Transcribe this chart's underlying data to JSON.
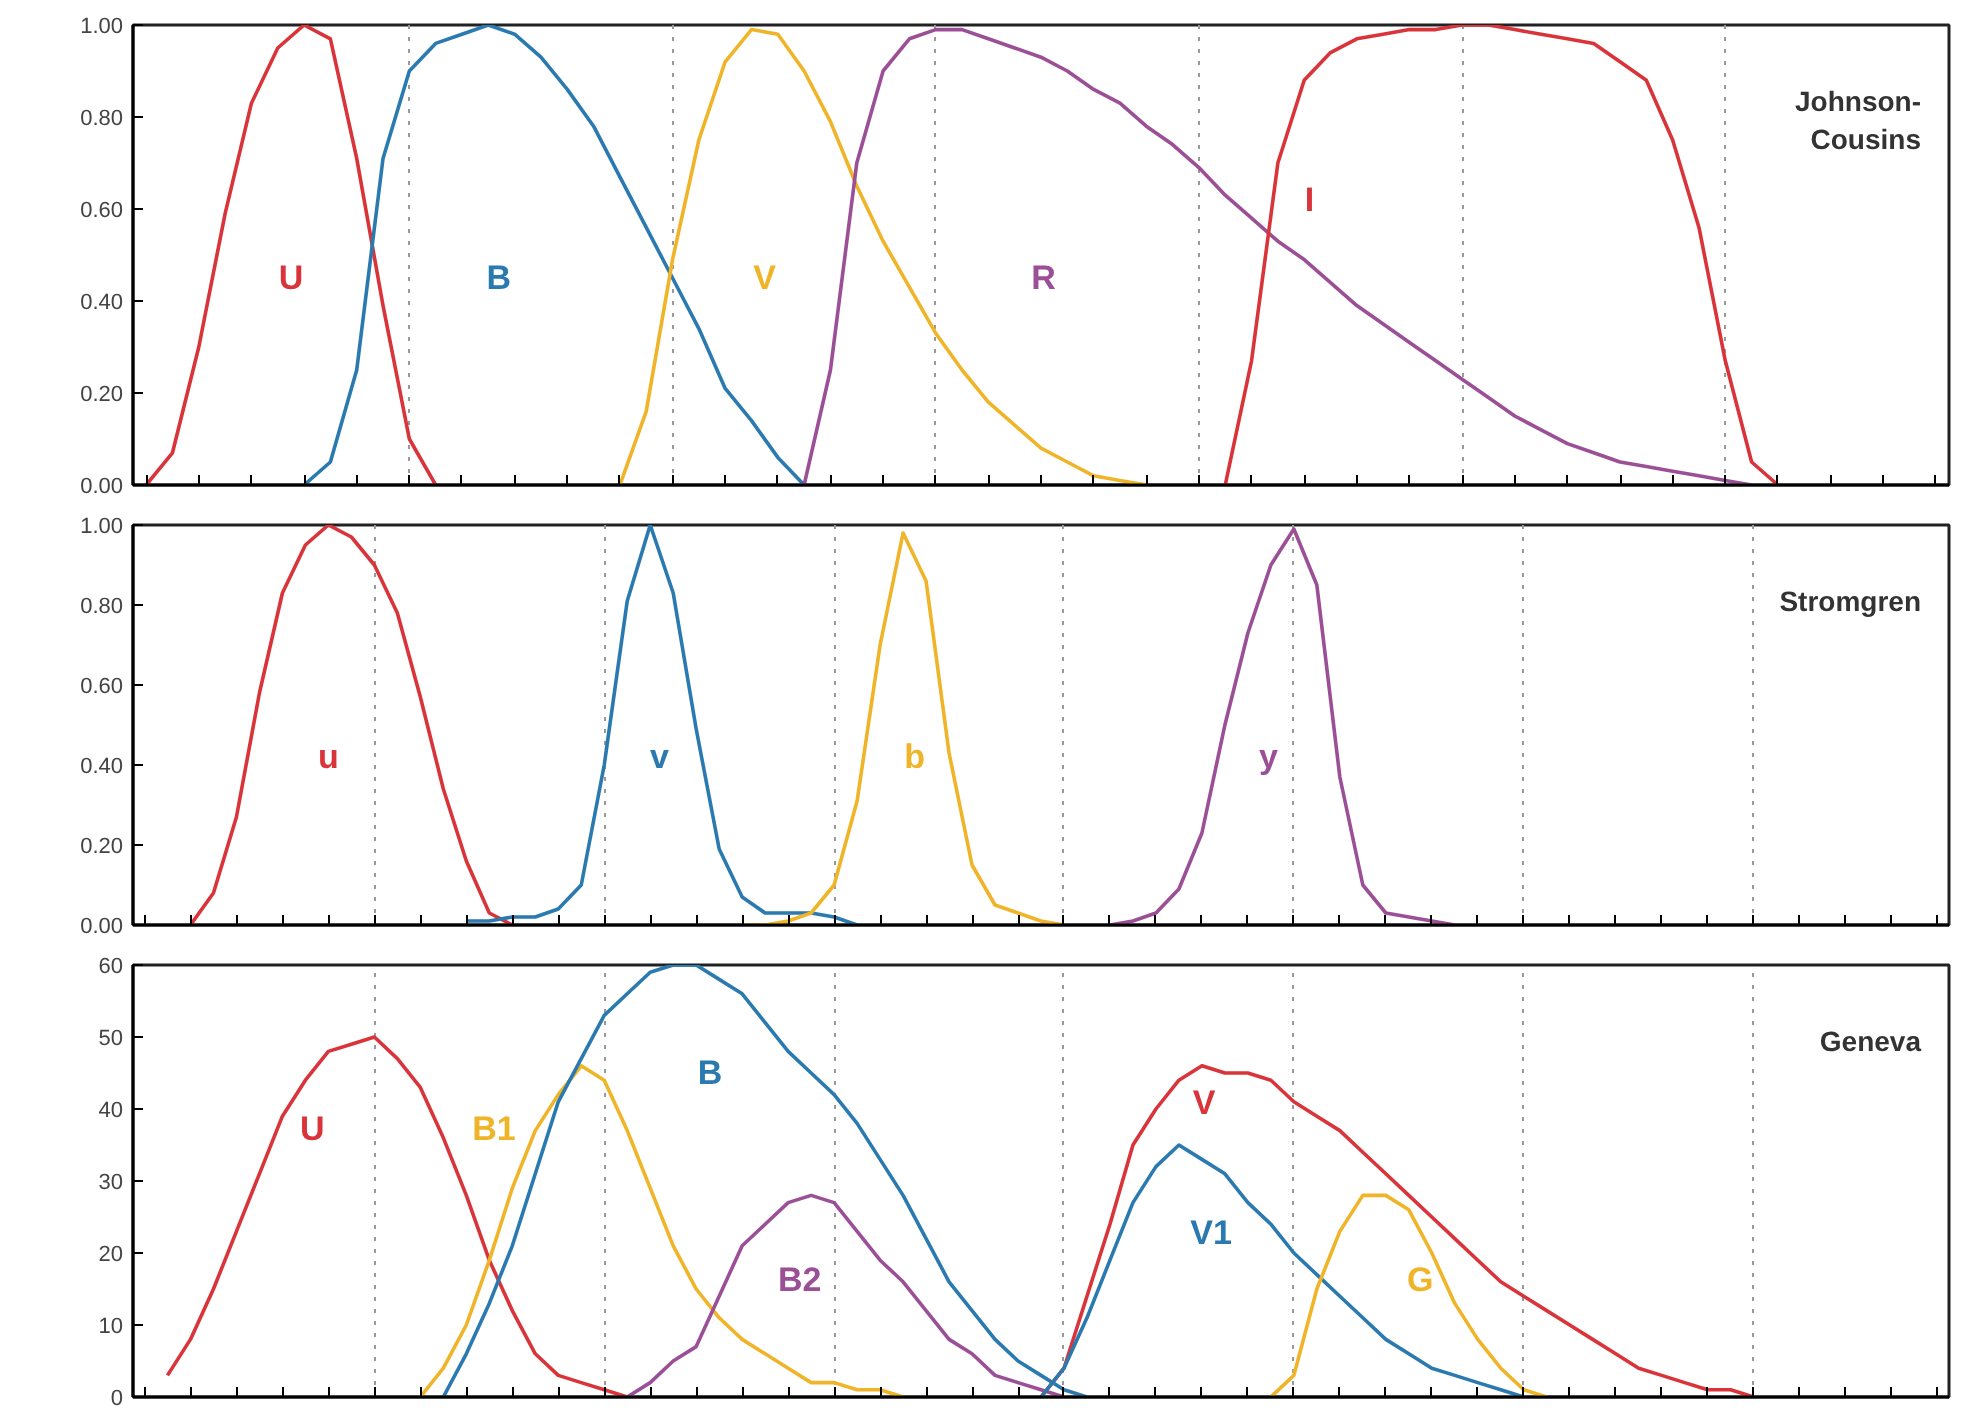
{
  "chart_data": [
    {
      "type": "line",
      "title": "Johnson-\nCousins",
      "categories": [
        null,
        null,
        null,
        null,
        null,
        null,
        null,
        null,
        null,
        null,
        null,
        null,
        null,
        null,
        null,
        null,
        null,
        null,
        null,
        null,
        null,
        null,
        null,
        null,
        null,
        null,
        null,
        null,
        null,
        null,
        null,
        null,
        null,
        null,
        null,
        null,
        null,
        null,
        null,
        null,
        null,
        null,
        null,
        null,
        null,
        null,
        null,
        null,
        null,
        null,
        null,
        null,
        null,
        null,
        null,
        null,
        null,
        null,
        null,
        null,
        null,
        null,
        null,
        null,
        null,
        null,
        null,
        null,
        null
      ],
      "ylim": [
        0,
        1
      ],
      "yticks": [
        {
          "value": 0,
          "label": "0.00"
        },
        {
          "value": 0.2,
          "label": "0.20"
        },
        {
          "value": 0.4,
          "label": "0.40"
        },
        {
          "value": 0.6,
          "label": "0.60"
        },
        {
          "value": 0.8,
          "label": "0.80"
        },
        {
          "value": 1,
          "label": "1.00"
        }
      ],
      "grid": "x",
      "line_style": "solid",
      "series": [
        {
          "name": "U",
          "color": "#d9343a",
          "values": [
            0,
            0.07,
            0.3,
            0.59,
            0.83,
            0.95,
            1.0,
            0.97,
            0.71,
            0.39,
            0.1,
            0,
            null,
            null,
            null,
            null,
            null,
            null,
            null,
            null,
            null,
            null,
            null,
            null,
            null,
            null,
            null,
            null,
            null,
            null,
            null,
            null,
            null,
            null,
            null,
            null,
            null,
            null,
            null,
            null,
            null,
            null,
            null,
            null,
            null,
            null,
            null,
            null,
            null,
            null,
            null,
            null,
            null,
            null,
            null,
            null,
            null,
            null,
            null,
            null,
            null,
            null,
            null,
            null,
            null,
            null,
            null,
            null,
            null
          ]
        },
        {
          "name": "B",
          "color": "#2a7ab0",
          "values": [
            null,
            null,
            null,
            null,
            null,
            null,
            0,
            0.05,
            0.25,
            0.71,
            0.9,
            0.96,
            0.98,
            1.0,
            0.98,
            0.93,
            0.86,
            0.78,
            0.67,
            0.56,
            0.45,
            0.34,
            0.21,
            0.14,
            0.06,
            0,
            null,
            null,
            null,
            null,
            null,
            null,
            null,
            null,
            null,
            null,
            null,
            null,
            null,
            null,
            null,
            null,
            null,
            null,
            null,
            null,
            null,
            null,
            null,
            null,
            null,
            null,
            null,
            null,
            null,
            null,
            null,
            null,
            null,
            null,
            null,
            null,
            null,
            null,
            null,
            null,
            null,
            null,
            null
          ]
        },
        {
          "name": "V",
          "color": "#f0b429",
          "values": [
            null,
            null,
            null,
            null,
            null,
            null,
            null,
            null,
            null,
            null,
            null,
            null,
            null,
            null,
            null,
            null,
            null,
            null,
            0,
            0.16,
            0.49,
            0.75,
            0.92,
            0.99,
            0.98,
            0.9,
            0.79,
            0.65,
            0.53,
            0.43,
            0.33,
            0.25,
            0.18,
            0.13,
            0.08,
            0.05,
            0.02,
            0.01,
            0,
            null,
            null,
            null,
            null,
            null,
            null,
            null,
            null,
            null,
            null,
            null,
            null,
            null,
            null,
            null,
            null,
            null,
            null,
            null,
            null,
            null,
            null,
            null,
            null,
            null,
            null,
            null,
            null,
            null,
            null
          ]
        },
        {
          "name": "R",
          "color": "#9b4f96",
          "values": [
            null,
            null,
            null,
            null,
            null,
            null,
            null,
            null,
            null,
            null,
            null,
            null,
            null,
            null,
            null,
            null,
            null,
            null,
            null,
            null,
            null,
            null,
            null,
            null,
            null,
            0,
            0.25,
            0.7,
            0.9,
            0.97,
            0.99,
            0.99,
            0.97,
            0.95,
            0.93,
            0.9,
            0.86,
            0.83,
            0.78,
            0.74,
            0.69,
            0.63,
            0.58,
            0.53,
            0.49,
            0.44,
            0.39,
            0.35,
            0.31,
            0.27,
            0.23,
            0.19,
            0.15,
            0.12,
            0.09,
            0.07,
            0.05,
            0.04,
            0.03,
            0.02,
            0.01,
            0,
            null,
            null,
            null,
            null,
            null,
            null,
            null
          ]
        },
        {
          "name": "I",
          "color": "#d9343a",
          "values": [
            null,
            null,
            null,
            null,
            null,
            null,
            null,
            null,
            null,
            null,
            null,
            null,
            null,
            null,
            null,
            null,
            null,
            null,
            null,
            null,
            null,
            null,
            null,
            null,
            null,
            null,
            null,
            null,
            null,
            null,
            null,
            null,
            null,
            null,
            null,
            null,
            null,
            null,
            null,
            null,
            null,
            0,
            0.27,
            0.7,
            0.88,
            0.94,
            0.97,
            0.98,
            0.99,
            0.99,
            1.0,
            1.0,
            0.99,
            0.98,
            0.97,
            0.96,
            0.92,
            0.88,
            0.75,
            0.56,
            0.27,
            0.05,
            0,
            null,
            null,
            null,
            null,
            null,
            null
          ]
        }
      ]
    },
    {
      "type": "line",
      "title": "Stromgren",
      "categories": [
        null,
        null,
        null,
        null,
        null,
        null,
        null,
        null,
        null,
        null,
        null,
        null,
        null,
        null,
        null,
        null,
        null,
        null,
        null,
        null,
        null,
        null,
        null,
        null,
        null,
        null,
        null,
        null,
        null,
        null,
        null,
        null,
        null,
        null,
        null,
        null,
        null,
        null,
        null,
        null,
        null,
        null,
        null,
        null,
        null,
        null,
        null,
        null,
        null,
        null,
        null,
        null,
        null,
        null,
        null,
        null,
        null,
        null,
        null,
        null,
        null,
        null,
        null,
        null,
        null,
        null,
        null,
        null,
        null,
        null,
        null,
        null,
        null,
        null,
        null,
        null,
        null,
        null,
        null
      ],
      "ylim": [
        0,
        1
      ],
      "yticks": [
        {
          "value": 0,
          "label": "0.00"
        },
        {
          "value": 0.2,
          "label": "0.20"
        },
        {
          "value": 0.4,
          "label": "0.40"
        },
        {
          "value": 0.6,
          "label": "0.60"
        },
        {
          "value": 0.8,
          "label": "0.80"
        },
        {
          "value": 1,
          "label": "1.00"
        }
      ],
      "grid": "x",
      "line_style": "solid",
      "series": [
        {
          "name": "u",
          "color": "#d9343a",
          "values": [
            null,
            null,
            0,
            0.08,
            0.27,
            0.58,
            0.83,
            0.95,
            1.0,
            0.97,
            0.9,
            0.78,
            0.57,
            0.34,
            0.16,
            0.03,
            0,
            null,
            null,
            null,
            null,
            null,
            null,
            null,
            null,
            null,
            null,
            null,
            null,
            null,
            null,
            null,
            null,
            null,
            null,
            null,
            null,
            null,
            null,
            null,
            null,
            null,
            null,
            null,
            null,
            null,
            null,
            null,
            null,
            null,
            null,
            null,
            null,
            null,
            null,
            null,
            null,
            null,
            null,
            null,
            null,
            null,
            null,
            null,
            null,
            null,
            null,
            null,
            null,
            null,
            null,
            null,
            null,
            null,
            null,
            null,
            null,
            null,
            null
          ]
        },
        {
          "name": "v",
          "color": "#2a7ab0",
          "values": [
            null,
            null,
            null,
            null,
            null,
            null,
            null,
            null,
            null,
            null,
            null,
            null,
            null,
            null,
            0.01,
            0.01,
            0.02,
            0.02,
            0.04,
            0.1,
            0.4,
            0.81,
            1.0,
            0.83,
            0.49,
            0.19,
            0.07,
            0.03,
            0.03,
            0.03,
            0.02,
            0,
            null,
            null,
            null,
            null,
            null,
            null,
            null,
            null,
            null,
            null,
            null,
            null,
            null,
            null,
            null,
            null,
            null,
            null,
            null,
            null,
            null,
            null,
            null,
            null,
            null,
            null,
            null,
            null,
            null,
            null,
            null,
            null,
            null,
            null,
            null,
            null,
            null,
            null,
            null,
            null,
            null,
            null,
            null,
            null,
            null,
            null,
            null
          ]
        },
        {
          "name": "b",
          "color": "#f0b429",
          "values": [
            null,
            null,
            null,
            null,
            null,
            null,
            null,
            null,
            null,
            null,
            null,
            null,
            null,
            null,
            null,
            null,
            null,
            null,
            null,
            null,
            null,
            null,
            null,
            null,
            null,
            null,
            0,
            0,
            0.01,
            0.03,
            0.1,
            0.31,
            0.7,
            0.98,
            0.86,
            0.43,
            0.15,
            0.05,
            0.03,
            0.01,
            0,
            null,
            null,
            null,
            null,
            null,
            null,
            null,
            null,
            null,
            null,
            null,
            null,
            null,
            null,
            null,
            null,
            null,
            null,
            null,
            null,
            null,
            null,
            null,
            null,
            null,
            null,
            null,
            null,
            null,
            null,
            null,
            null,
            null,
            null,
            null,
            null,
            null,
            null
          ]
        },
        {
          "name": "y",
          "color": "#9b4f96",
          "values": [
            null,
            null,
            null,
            null,
            null,
            null,
            null,
            null,
            null,
            null,
            null,
            null,
            null,
            null,
            null,
            null,
            null,
            null,
            null,
            null,
            null,
            null,
            null,
            null,
            null,
            null,
            null,
            null,
            null,
            null,
            null,
            null,
            null,
            null,
            null,
            null,
            null,
            null,
            null,
            null,
            null,
            null,
            0,
            0.01,
            0.03,
            0.09,
            0.23,
            0.5,
            0.73,
            0.9,
            0.99,
            0.85,
            0.37,
            0.1,
            0.03,
            0.02,
            0.01,
            0,
            null,
            null,
            null,
            null,
            null,
            null,
            null,
            null,
            null,
            null,
            null,
            null,
            null,
            null,
            null,
            null,
            null,
            null,
            null,
            null,
            null
          ]
        }
      ]
    },
    {
      "type": "line",
      "title": "Geneva",
      "categories": [
        null,
        null,
        null,
        null,
        null,
        null,
        null,
        null,
        null,
        null,
        null,
        null,
        null,
        null,
        null,
        null,
        null,
        null,
        null,
        null,
        null,
        null,
        null,
        null,
        null,
        null,
        null,
        null,
        null,
        null,
        null,
        null,
        null,
        null,
        null,
        null,
        null,
        null,
        null,
        null,
        null,
        null,
        null,
        null,
        null,
        null,
        null,
        null,
        null,
        null,
        null,
        null,
        null,
        null,
        null,
        null,
        null,
        null,
        null,
        null,
        null,
        null,
        null,
        null,
        null,
        null,
        null,
        null,
        null,
        null,
        null,
        null,
        null,
        null,
        null,
        null,
        null,
        null,
        null
      ],
      "ylim": [
        0,
        60
      ],
      "yticks": [
        0,
        10,
        20,
        30,
        40,
        50,
        60
      ],
      "grid": "x",
      "line_style": "solid",
      "series": [
        {
          "name": "U",
          "color": "#d9343a",
          "values": [
            null,
            3,
            8,
            15,
            23,
            31,
            39,
            44,
            48,
            49,
            50,
            47,
            43,
            36,
            28,
            19,
            12,
            6,
            3,
            2,
            1,
            0,
            null,
            null,
            null,
            null,
            null,
            null,
            null,
            null,
            null,
            null,
            null,
            null,
            null,
            null,
            null,
            null,
            null,
            null,
            null,
            null,
            null,
            null,
            null,
            null,
            null,
            null,
            null,
            null,
            null,
            null,
            null,
            null,
            null,
            null,
            null,
            null,
            null,
            null,
            null,
            null,
            null,
            null,
            null,
            null,
            null,
            null,
            null,
            null,
            null,
            null,
            null,
            null,
            null,
            null,
            null,
            null,
            null
          ]
        },
        {
          "name": "B1",
          "color": "#f0b429",
          "values": [
            null,
            null,
            null,
            null,
            null,
            null,
            null,
            null,
            null,
            null,
            null,
            null,
            0,
            4,
            10,
            19,
            29,
            37,
            42,
            46,
            44,
            37,
            29,
            21,
            15,
            11,
            8,
            6,
            4,
            2,
            2,
            1,
            1,
            0,
            null,
            null,
            null,
            null,
            null,
            null,
            null,
            null,
            null,
            null,
            null,
            null,
            null,
            null,
            null,
            null,
            null,
            null,
            null,
            null,
            null,
            null,
            null,
            null,
            null,
            null,
            null,
            null,
            null,
            null,
            null,
            null,
            null,
            null,
            null,
            null,
            null,
            null,
            null,
            null,
            null,
            null,
            null,
            null,
            null
          ]
        },
        {
          "name": "B",
          "color": "#2a7ab0",
          "values": [
            null,
            null,
            null,
            null,
            null,
            null,
            null,
            null,
            null,
            null,
            null,
            null,
            null,
            0,
            6,
            13,
            21,
            31,
            41,
            47,
            53,
            56,
            59,
            60,
            60,
            58,
            56,
            52,
            48,
            45,
            42,
            38,
            33,
            28,
            22,
            16,
            12,
            8,
            5,
            3,
            1,
            0,
            null,
            null,
            null,
            null,
            null,
            null,
            null,
            null,
            null,
            null,
            null,
            null,
            null,
            null,
            null,
            null,
            null,
            null,
            null,
            null,
            null,
            null,
            null,
            null,
            null,
            null,
            null,
            null,
            null,
            null,
            null,
            null,
            null,
            null,
            null,
            null,
            null
          ]
        },
        {
          "name": "B2",
          "color": "#9b4f96",
          "values": [
            null,
            null,
            null,
            null,
            null,
            null,
            null,
            null,
            null,
            null,
            null,
            null,
            null,
            null,
            null,
            null,
            null,
            null,
            null,
            null,
            null,
            0,
            2,
            5,
            7,
            14,
            21,
            24,
            27,
            28,
            27,
            23,
            19,
            16,
            12,
            8,
            6,
            3,
            2,
            1,
            0,
            null,
            null,
            null,
            null,
            null,
            null,
            null,
            null,
            null,
            null,
            null,
            null,
            null,
            null,
            null,
            null,
            null,
            null,
            null,
            null,
            null,
            null,
            null,
            null,
            null,
            null,
            null,
            null,
            null,
            null,
            null,
            null,
            null,
            null,
            null,
            null,
            null,
            null
          ]
        },
        {
          "name": "V",
          "color": "#d9343a",
          "values": [
            null,
            null,
            null,
            null,
            null,
            null,
            null,
            null,
            null,
            null,
            null,
            null,
            null,
            null,
            null,
            null,
            null,
            null,
            null,
            null,
            null,
            null,
            null,
            null,
            null,
            null,
            null,
            null,
            null,
            null,
            null,
            null,
            null,
            null,
            null,
            null,
            null,
            null,
            null,
            0,
            4,
            14,
            24,
            35,
            40,
            44,
            46,
            45,
            45,
            44,
            41,
            39,
            37,
            34,
            31,
            28,
            25,
            22,
            19,
            16,
            14,
            12,
            10,
            8,
            6,
            4,
            3,
            2,
            1,
            1,
            0,
            null,
            null,
            null,
            null,
            null,
            null,
            null,
            null
          ]
        },
        {
          "name": "V1",
          "color": "#2a7ab0",
          "values": [
            null,
            null,
            null,
            null,
            null,
            null,
            null,
            null,
            null,
            null,
            null,
            null,
            null,
            null,
            null,
            null,
            null,
            null,
            null,
            null,
            null,
            null,
            null,
            null,
            null,
            null,
            null,
            null,
            null,
            null,
            null,
            null,
            null,
            null,
            null,
            null,
            null,
            null,
            null,
            0,
            4,
            11,
            19,
            27,
            32,
            35,
            33,
            31,
            27,
            24,
            20,
            17,
            14,
            11,
            8,
            6,
            4,
            3,
            2,
            1,
            0,
            null,
            null,
            null,
            null,
            null,
            null,
            null,
            null,
            null,
            null,
            null,
            null,
            null,
            null,
            null,
            null,
            null,
            null
          ]
        },
        {
          "name": "G",
          "color": "#f0b429",
          "values": [
            null,
            null,
            null,
            null,
            null,
            null,
            null,
            null,
            null,
            null,
            null,
            null,
            null,
            null,
            null,
            null,
            null,
            null,
            null,
            null,
            null,
            null,
            null,
            null,
            null,
            null,
            null,
            null,
            null,
            null,
            null,
            null,
            null,
            null,
            null,
            null,
            null,
            null,
            null,
            null,
            null,
            null,
            null,
            null,
            null,
            null,
            null,
            null,
            null,
            0,
            3,
            15,
            23,
            28,
            28,
            26,
            20,
            13,
            8,
            4,
            1,
            0,
            null,
            null,
            null,
            null,
            null,
            null,
            null,
            null,
            null,
            null,
            null,
            null,
            null,
            null,
            null,
            null,
            null
          ]
        }
      ]
    }
  ]
}
